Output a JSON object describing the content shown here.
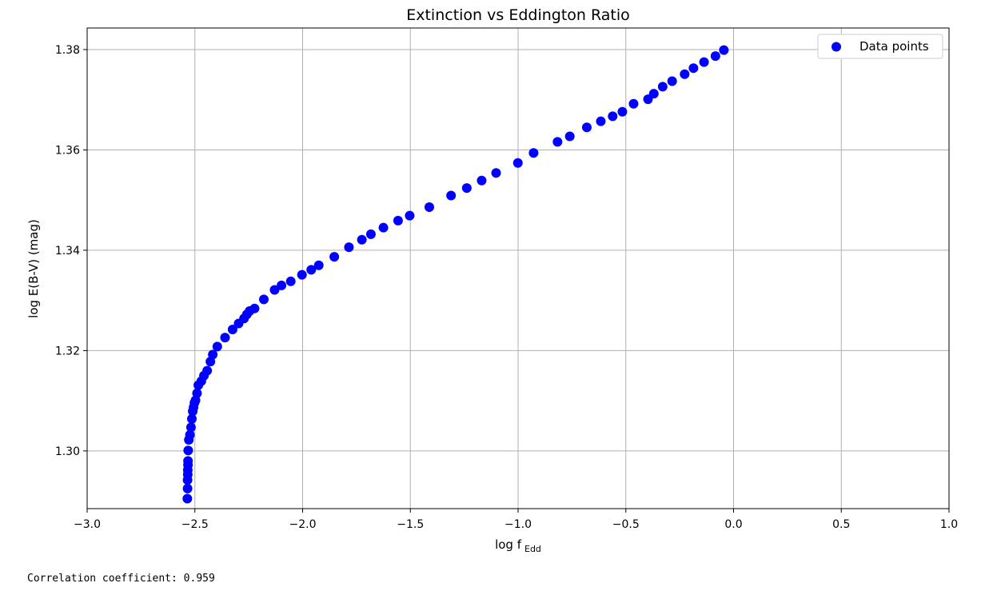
{
  "chart_data": {
    "type": "scatter",
    "title": "Extinction vs Eddington Ratio",
    "xlabel": "log f",
    "xlabel_sub": "Edd",
    "ylabel": "log E(B-V) (mag)",
    "xlim": [
      -3.0,
      1.0
    ],
    "ylim": [
      1.2885,
      1.3843
    ],
    "xticks": [
      -3.0,
      -2.5,
      -2.0,
      -1.5,
      -1.0,
      -0.5,
      0.0,
      0.5,
      1.0
    ],
    "xtick_labels": [
      "−3.0",
      "−2.5",
      "−2.0",
      "−1.5",
      "−1.0",
      "−0.5",
      "0.0",
      "0.5",
      "1.0"
    ],
    "yticks": [
      1.3,
      1.32,
      1.34,
      1.36,
      1.38
    ],
    "ytick_labels": [
      "1.30",
      "1.32",
      "1.34",
      "1.36",
      "1.38"
    ],
    "grid": true,
    "legend": {
      "position": "top-right",
      "entries": [
        "Data points"
      ]
    },
    "series": [
      {
        "name": "Data points",
        "color": "#0000ff",
        "x": [
          -2.535,
          -2.534,
          -2.534,
          -2.533,
          -2.533,
          -2.532,
          -2.532,
          -2.531,
          -2.528,
          -2.523,
          -2.518,
          -2.514,
          -2.51,
          -2.506,
          -2.502,
          -2.497,
          -2.49,
          -2.484,
          -2.47,
          -2.458,
          -2.443,
          -2.428,
          -2.417,
          -2.396,
          -2.36,
          -2.325,
          -2.297,
          -2.272,
          -2.259,
          -2.246,
          -2.223,
          -2.18,
          -2.13,
          -2.098,
          -2.055,
          -2.003,
          -1.96,
          -1.925,
          -1.853,
          -1.785,
          -1.725,
          -1.683,
          -1.625,
          -1.557,
          -1.503,
          -1.412,
          -1.311,
          -1.238,
          -1.169,
          -1.102,
          -1.001,
          -0.928,
          -0.817,
          -0.76,
          -0.681,
          -0.616,
          -0.561,
          -0.516,
          -0.464,
          -0.397,
          -0.37,
          -0.329,
          -0.285,
          -0.227,
          -0.186,
          -0.137,
          -0.084,
          -0.045
        ],
        "y": [
          1.2905,
          1.2925,
          1.2942,
          1.2953,
          1.2962,
          1.2972,
          1.298,
          1.3001,
          1.3022,
          1.3032,
          1.3047,
          1.3064,
          1.3079,
          1.3087,
          1.3096,
          1.3101,
          1.3115,
          1.3131,
          1.3139,
          1.315,
          1.316,
          1.3178,
          1.3192,
          1.3208,
          1.3226,
          1.3242,
          1.3254,
          1.3264,
          1.3272,
          1.3279,
          1.3284,
          1.3302,
          1.3321,
          1.333,
          1.3338,
          1.3351,
          1.3361,
          1.337,
          1.3387,
          1.3406,
          1.3421,
          1.3432,
          1.3445,
          1.3459,
          1.3469,
          1.3486,
          1.3509,
          1.3524,
          1.3539,
          1.3554,
          1.3574,
          1.3594,
          1.3616,
          1.3627,
          1.3645,
          1.3657,
          1.3667,
          1.3676,
          1.3692,
          1.3701,
          1.3712,
          1.3726,
          1.3737,
          1.3751,
          1.3763,
          1.3775,
          1.3787,
          1.3799
        ]
      }
    ]
  },
  "output": {
    "correlation_text": "Correlation coefficient: 0.959"
  }
}
